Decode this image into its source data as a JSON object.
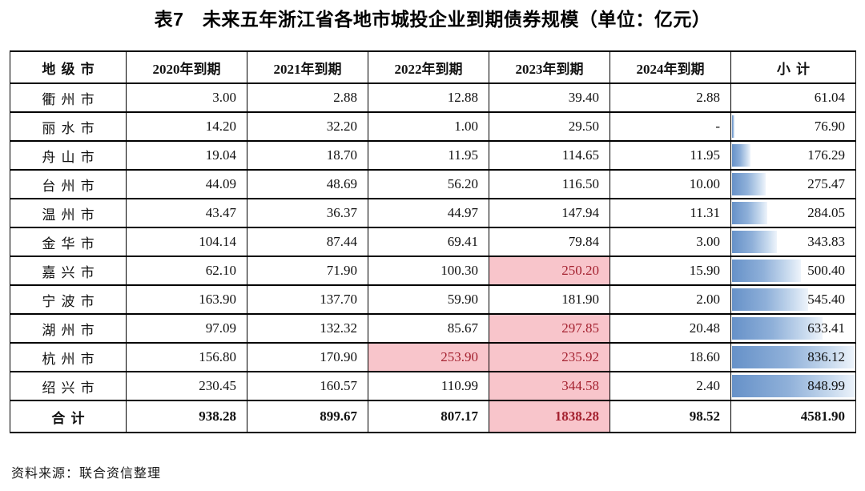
{
  "title": "表7　未来五年浙江省各地市城投企业到期债券规模（单位：亿元）",
  "source_note": "资料来源：联合资信整理",
  "colors": {
    "highlight_bg": "#f8c5cb",
    "highlight_text": "#a42230",
    "bar_color_start": "#6691c8",
    "bar_color_end": "#eef4fb",
    "border": "#000000"
  },
  "chart_data": {
    "type": "table",
    "title": "表7　未来五年浙江省各地市城投企业到期债券规模（单位：亿元）",
    "unit": "亿元",
    "columns": [
      "地级市",
      "2020年到期",
      "2021年到期",
      "2022年到期",
      "2023年到期",
      "2024年到期",
      "小计"
    ],
    "bar_scale": {
      "applies_to": "小计",
      "min": 61.04,
      "max": 848.99
    },
    "rows": [
      {
        "city": "衢州市",
        "values": [
          "3.00",
          "2.88",
          "12.88",
          "39.40",
          "2.88"
        ],
        "subtotal": "61.04",
        "highlight": []
      },
      {
        "city": "丽水市",
        "values": [
          "14.20",
          "32.20",
          "1.00",
          "29.50",
          "-"
        ],
        "subtotal": "76.90",
        "highlight": []
      },
      {
        "city": "舟山市",
        "values": [
          "19.04",
          "18.70",
          "11.95",
          "114.65",
          "11.95"
        ],
        "subtotal": "176.29",
        "highlight": []
      },
      {
        "city": "台州市",
        "values": [
          "44.09",
          "48.69",
          "56.20",
          "116.50",
          "10.00"
        ],
        "subtotal": "275.47",
        "highlight": []
      },
      {
        "city": "温州市",
        "values": [
          "43.47",
          "36.37",
          "44.97",
          "147.94",
          "11.31"
        ],
        "subtotal": "284.05",
        "highlight": []
      },
      {
        "city": "金华市",
        "values": [
          "104.14",
          "87.44",
          "69.41",
          "79.84",
          "3.00"
        ],
        "subtotal": "343.83",
        "highlight": []
      },
      {
        "city": "嘉兴市",
        "values": [
          "62.10",
          "71.90",
          "100.30",
          "250.20",
          "15.90"
        ],
        "subtotal": "500.40",
        "highlight": [
          3
        ]
      },
      {
        "city": "宁波市",
        "values": [
          "163.90",
          "137.70",
          "59.90",
          "181.90",
          "2.00"
        ],
        "subtotal": "545.40",
        "highlight": []
      },
      {
        "city": "湖州市",
        "values": [
          "97.09",
          "132.32",
          "85.67",
          "297.85",
          "20.48"
        ],
        "subtotal": "633.41",
        "highlight": [
          3
        ]
      },
      {
        "city": "杭州市",
        "values": [
          "156.80",
          "170.90",
          "253.90",
          "235.92",
          "18.60"
        ],
        "subtotal": "836.12",
        "highlight": [
          2,
          3
        ]
      },
      {
        "city": "绍兴市",
        "values": [
          "230.45",
          "160.57",
          "110.99",
          "344.58",
          "2.40"
        ],
        "subtotal": "848.99",
        "highlight": [
          3
        ]
      }
    ],
    "total_row": {
      "city": "合计",
      "values": [
        "938.28",
        "899.67",
        "807.17",
        "1838.28",
        "98.52"
      ],
      "subtotal": "4581.90",
      "highlight": [
        3
      ],
      "is_total": true
    }
  }
}
